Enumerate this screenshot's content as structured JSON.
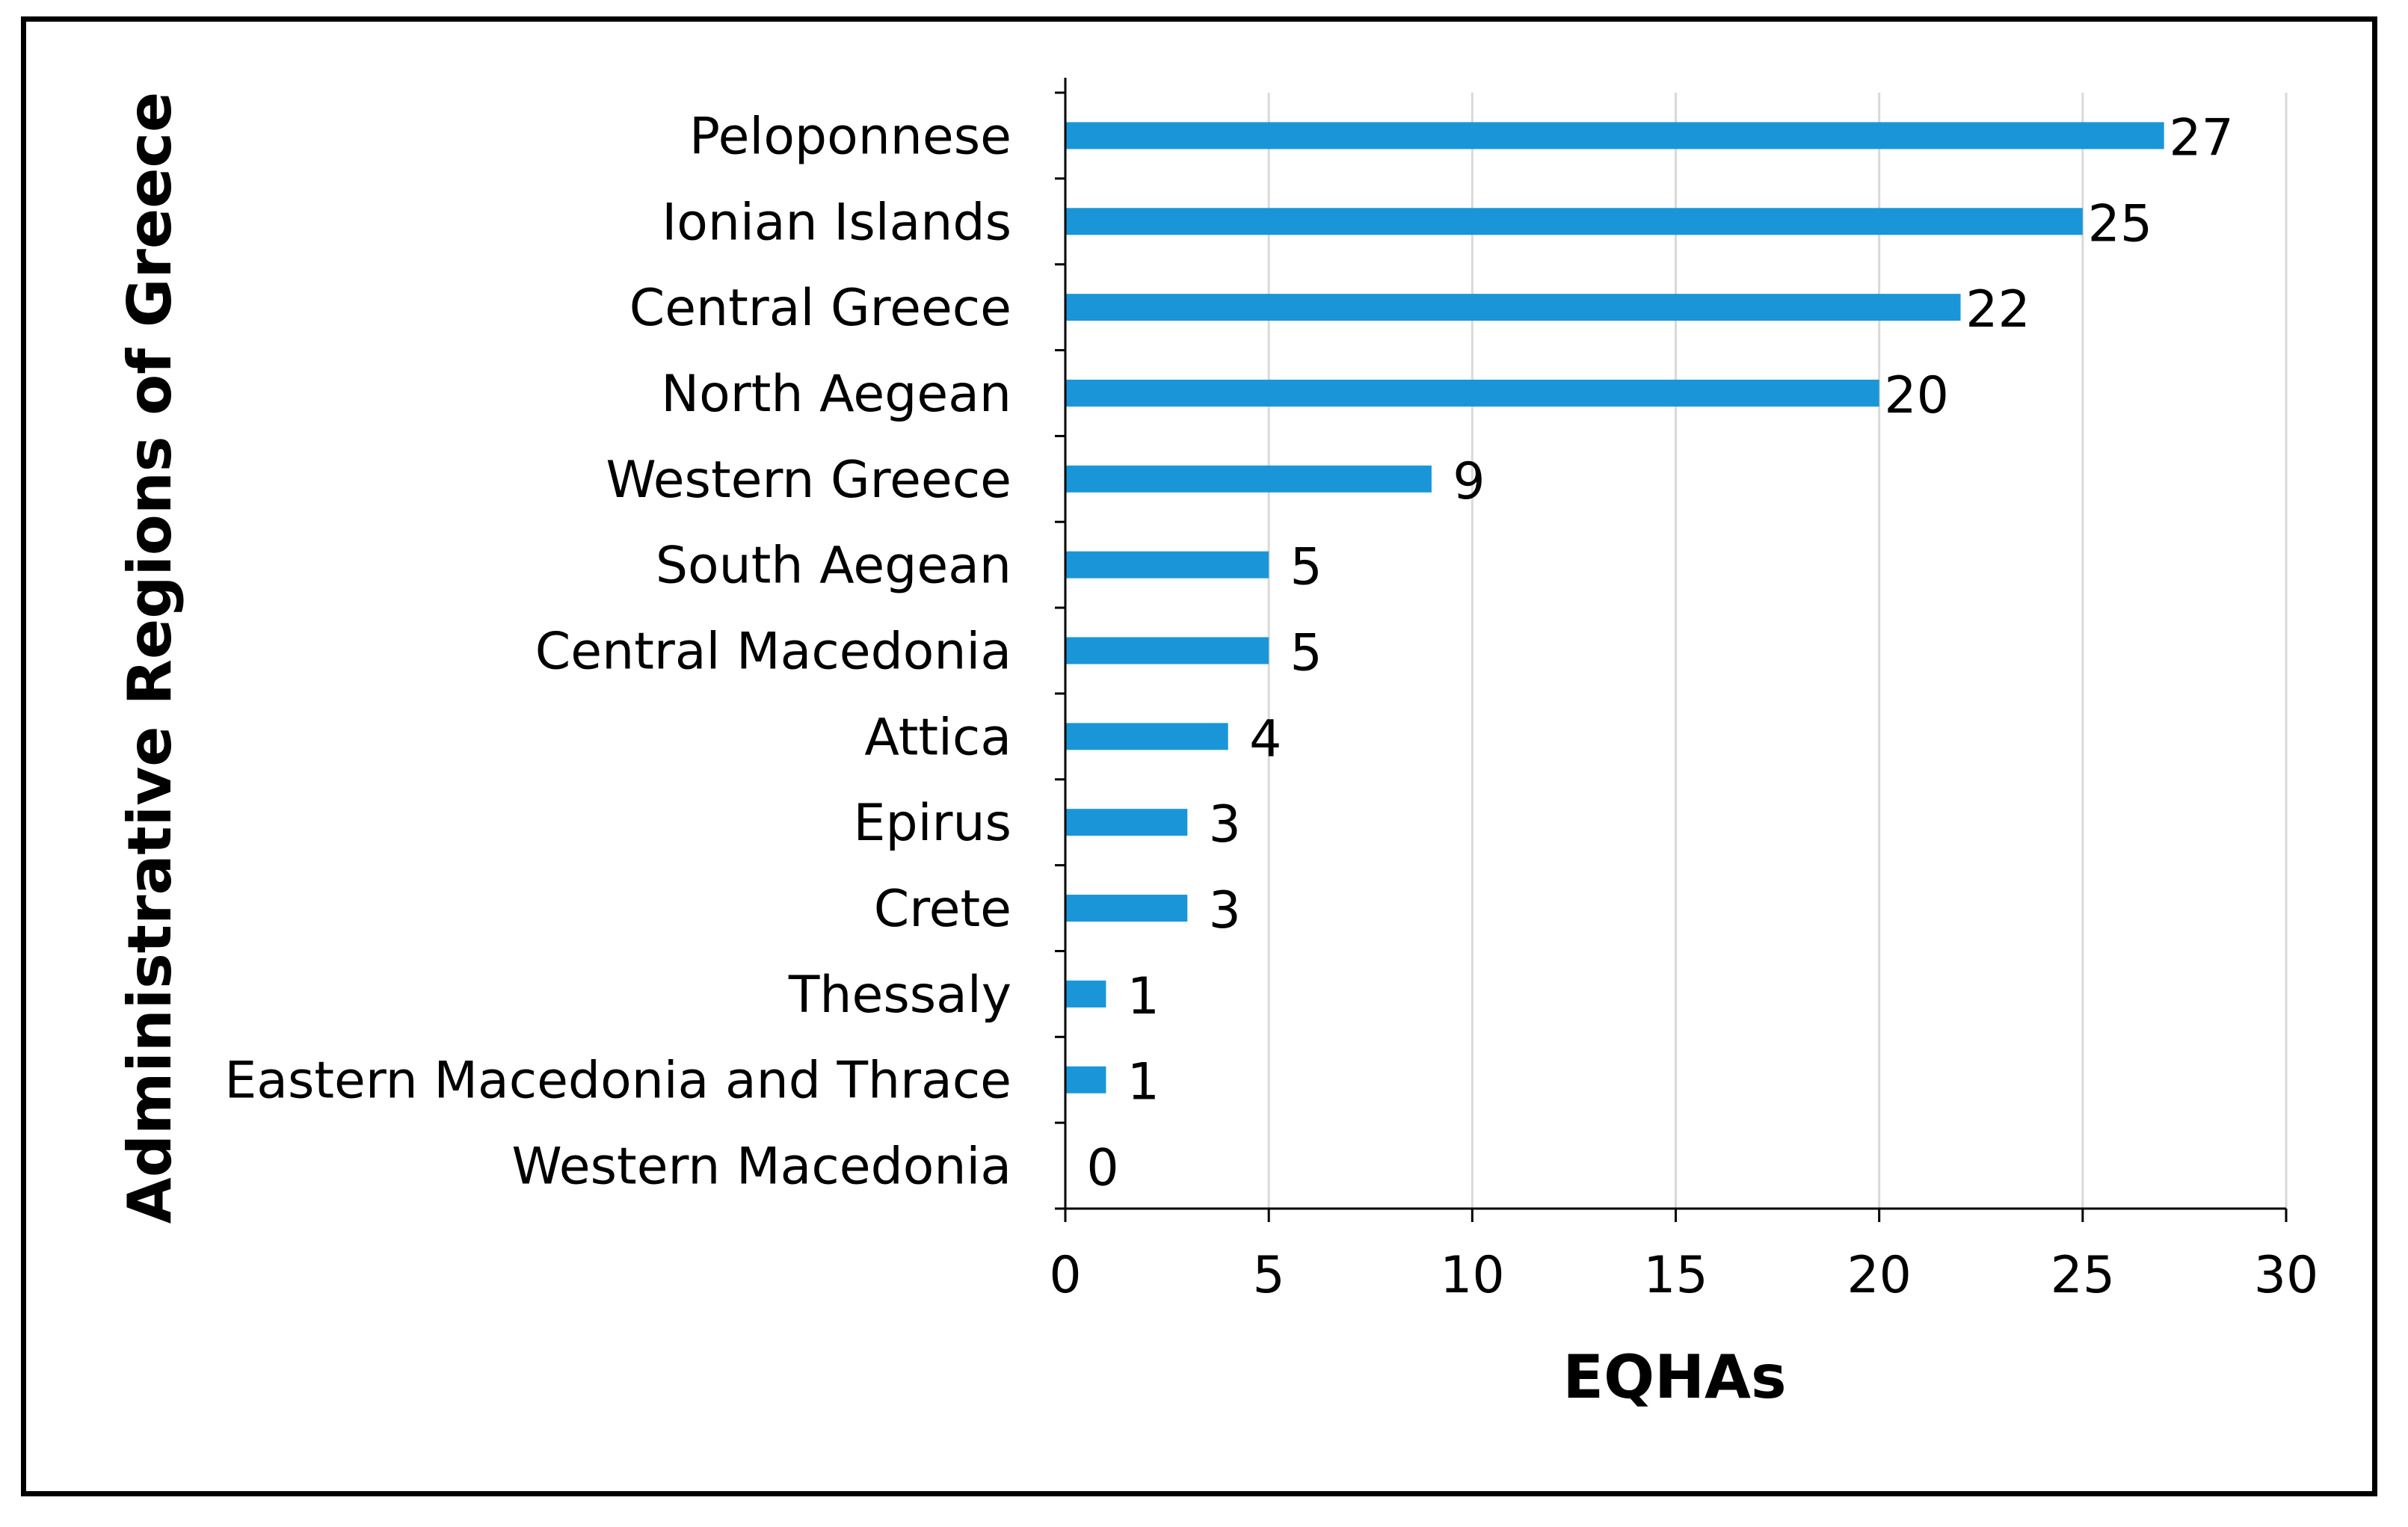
{
  "chart_data": {
    "type": "bar",
    "orientation": "horizontal",
    "categories": [
      "Peloponnese",
      "Ionian Islands",
      "Central Greece",
      "North Aegean",
      "Western Greece",
      "South Aegean",
      "Central Macedonia",
      "Attica",
      "Epirus",
      "Crete",
      "Thessaly",
      "Eastern Macedonia and Thrace",
      "Western Macedonia"
    ],
    "values": [
      27,
      25,
      22,
      20,
      9,
      5,
      5,
      4,
      3,
      3,
      1,
      1,
      0
    ],
    "value_labels": [
      "27",
      "25",
      "22",
      "20",
      "9",
      "5",
      "5",
      "4",
      "3",
      "3",
      "1",
      "1",
      "0"
    ],
    "xlabel": "EQHAs",
    "ylabel": "Administrative Regions of Greece",
    "xlim": [
      0,
      30
    ],
    "xticks": [
      0,
      5,
      10,
      15,
      20,
      25,
      30
    ],
    "xtick_labels": [
      "0",
      "5",
      "10",
      "15",
      "20",
      "25",
      "30"
    ],
    "grid": "vertical",
    "legend": "none",
    "bar_color": "#1a96d8",
    "grid_color": "#d9d9d9",
    "axis_color": "#000000"
  }
}
